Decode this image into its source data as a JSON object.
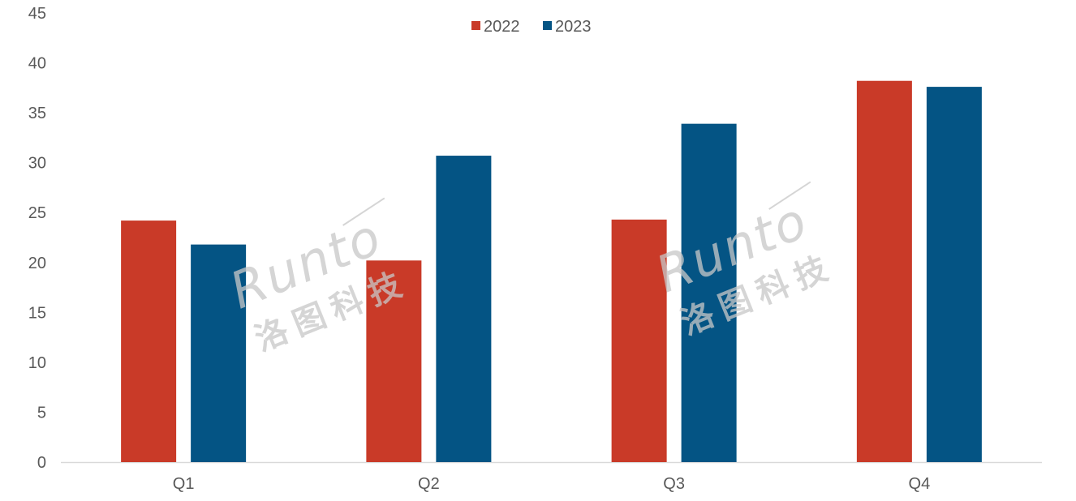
{
  "chart_data": {
    "type": "bar",
    "title": "",
    "xlabel": "",
    "ylabel": "",
    "categories": [
      "Q1",
      "Q2",
      "Q3",
      "Q4"
    ],
    "series": [
      {
        "name": "2022",
        "color": "#c93a28",
        "values": [
          24.2,
          20.2,
          24.3,
          38.2
        ]
      },
      {
        "name": "2023",
        "color": "#045484",
        "values": [
          21.8,
          30.7,
          33.9,
          37.6
        ]
      }
    ],
    "ylim": [
      0,
      45
    ],
    "yticks": [
      0,
      5,
      10,
      15,
      20,
      25,
      30,
      35,
      40,
      45
    ],
    "grid": false,
    "legend_position": "top-center"
  },
  "watermark": {
    "brand": "Runto",
    "subtitle": "洛图科技",
    "color": "#c8c8c8"
  }
}
